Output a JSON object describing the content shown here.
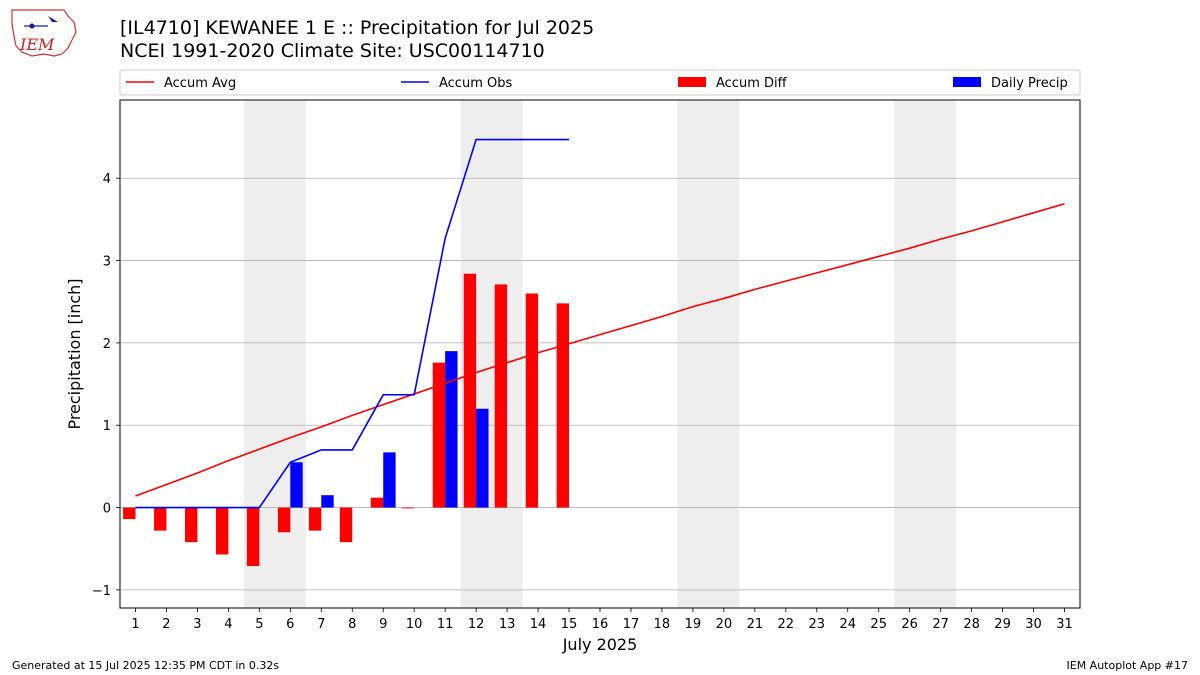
{
  "header": {
    "title": "[IL4710] KEWANEE 1 E :: Precipitation for Jul 2025",
    "subtitle": "NCEI 1991-2020 Climate Site: USC00114710"
  },
  "logo": {
    "text": "IEM"
  },
  "footer": {
    "left": "Generated at 15 Jul 2025 12:35 PM CDT in 0.32s",
    "right": "IEM Autoplot App #17"
  },
  "colors": {
    "accum_avg": "#ff0000",
    "accum_obs": "#0000ff",
    "accum_diff": "#ff0000",
    "daily_precip": "#0000ff",
    "weekend_band": "#eeeeee",
    "grid": "#b0b0b0"
  },
  "chart_data": {
    "type": "bar",
    "xlabel": "July 2025",
    "ylabel": "Precipitation [inch]",
    "xlim": [
      0.5,
      31.5
    ],
    "ylim": [
      -1.22,
      4.95
    ],
    "xticks": [
      "1",
      "2",
      "3",
      "4",
      "5",
      "6",
      "7",
      "8",
      "9",
      "10",
      "11",
      "12",
      "13",
      "14",
      "15",
      "16",
      "17",
      "18",
      "19",
      "20",
      "21",
      "22",
      "23",
      "24",
      "25",
      "26",
      "27",
      "28",
      "29",
      "30",
      "31"
    ],
    "yticks": [
      -1,
      0,
      1,
      2,
      3,
      4
    ],
    "ytick_labels": [
      "−1",
      "0",
      "1",
      "2",
      "3",
      "4"
    ],
    "grid": "horizontal",
    "legend_placement": "top, above plot",
    "weekend_bands": [
      [
        4.5,
        6.5
      ],
      [
        11.5,
        13.5
      ],
      [
        18.5,
        20.5
      ],
      [
        25.5,
        27.5
      ]
    ],
    "series": [
      {
        "name": "Accum Avg",
        "kind": "line",
        "days": [
          1,
          2,
          3,
          4,
          5,
          6,
          7,
          8,
          9,
          10,
          11,
          12,
          13,
          14,
          15,
          16,
          17,
          18,
          19,
          20,
          21,
          22,
          23,
          24,
          25,
          26,
          27,
          28,
          29,
          30,
          31
        ],
        "values": [
          0.14,
          0.28,
          0.42,
          0.57,
          0.71,
          0.85,
          0.98,
          1.12,
          1.25,
          1.38,
          1.51,
          1.64,
          1.76,
          1.88,
          1.99,
          2.1,
          2.21,
          2.32,
          2.44,
          2.54,
          2.65,
          2.75,
          2.85,
          2.95,
          3.05,
          3.15,
          3.26,
          3.36,
          3.47,
          3.58,
          3.69
        ]
      },
      {
        "name": "Accum Obs",
        "kind": "line",
        "days": [
          1,
          2,
          3,
          4,
          5,
          6,
          7,
          8,
          9,
          10,
          11,
          12,
          13,
          14,
          15
        ],
        "values": [
          0,
          0,
          0,
          0,
          0,
          0.55,
          0.7,
          0.7,
          1.37,
          1.37,
          3.27,
          4.47,
          4.47,
          4.47,
          4.47
        ]
      },
      {
        "name": "Accum Diff",
        "kind": "bar",
        "offset": -0.2,
        "days": [
          1,
          2,
          3,
          4,
          5,
          6,
          7,
          8,
          9,
          10,
          11,
          12,
          13,
          14,
          15
        ],
        "values": [
          -0.14,
          -0.28,
          -0.42,
          -0.57,
          -0.71,
          -0.3,
          -0.28,
          -0.42,
          0.12,
          -0.01,
          1.76,
          2.84,
          2.71,
          2.6,
          2.48
        ]
      },
      {
        "name": "Daily Precip",
        "kind": "bar",
        "offset": 0.2,
        "days": [
          6,
          7,
          9,
          11,
          12
        ],
        "values": [
          0.55,
          0.15,
          0.67,
          1.9,
          1.2
        ]
      }
    ]
  }
}
